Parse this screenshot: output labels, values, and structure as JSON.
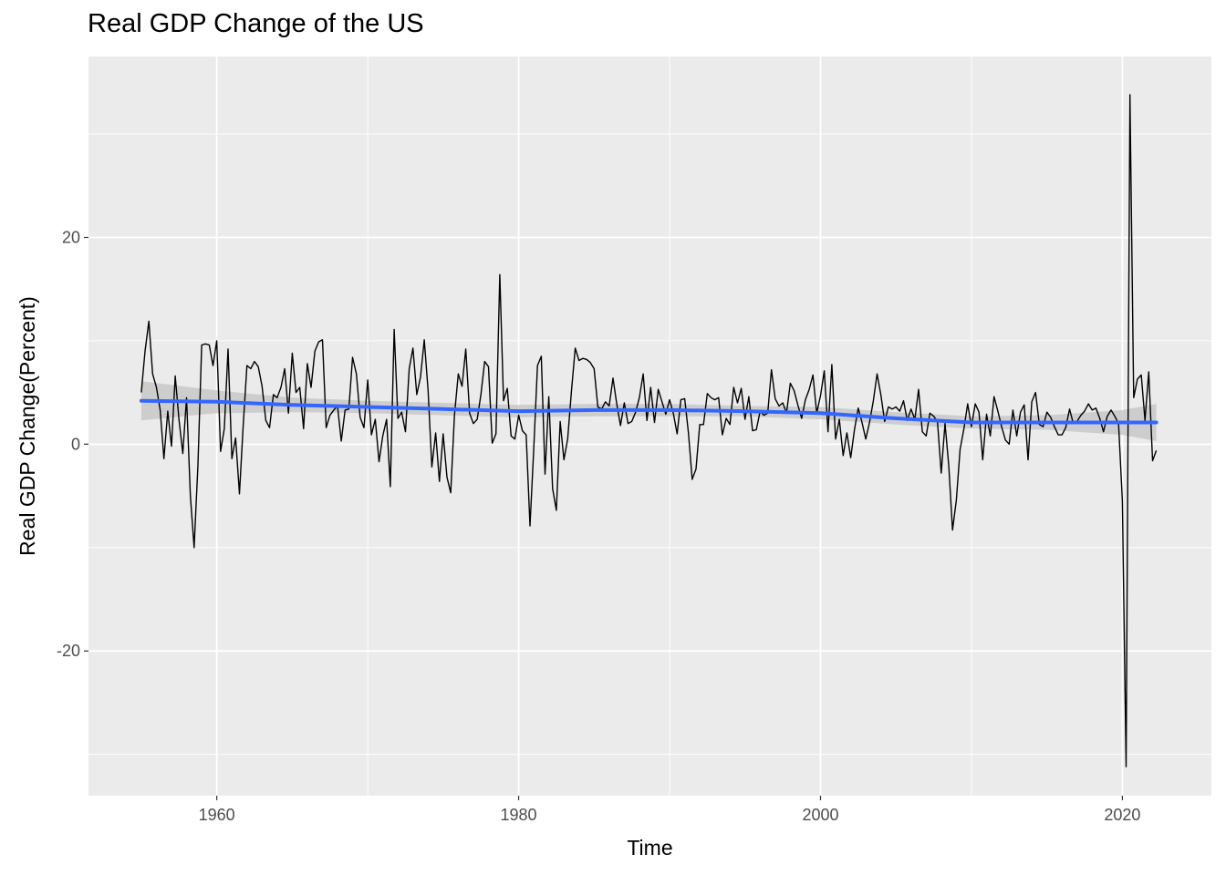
{
  "chart_data": {
    "type": "line",
    "title": "Real GDP Change of the US",
    "xlabel": "Time",
    "ylabel": "Real GDP Change(Percent)",
    "xlim": [
      1951.5,
      2025.9
    ],
    "ylim": [
      -34,
      37.5
    ],
    "x_ticks": [
      1960,
      1980,
      2000,
      2020
    ],
    "y_ticks": [
      -20,
      0,
      20
    ],
    "grid": true,
    "legend": "none",
    "colors": {
      "panel": "#ebebeb",
      "grid": "#ffffff",
      "series": "#000000",
      "trend": "#3366ff",
      "band": "#c8c8c8"
    },
    "series": [
      {
        "type": "line",
        "x": [
          1955.0,
          1955.25,
          1955.5,
          1955.75,
          1956.0,
          1956.25,
          1956.5,
          1956.75,
          1957.0,
          1957.25,
          1957.5,
          1957.75,
          1958.0,
          1958.25,
          1958.5,
          1958.75,
          1959.0,
          1959.25,
          1959.5,
          1959.75,
          1960.0,
          1960.25,
          1960.5,
          1960.75,
          1961.0,
          1961.25,
          1961.5,
          1961.75,
          1962.0,
          1962.25,
          1962.5,
          1962.75,
          1963.0,
          1963.25,
          1963.5,
          1963.75,
          1964.0,
          1964.25,
          1964.5,
          1964.75,
          1965.0,
          1965.25,
          1965.5,
          1965.75,
          1966.0,
          1966.25,
          1966.5,
          1966.75,
          1967.0,
          1967.25,
          1967.5,
          1967.75,
          1968.0,
          1968.25,
          1968.5,
          1968.75,
          1969.0,
          1969.25,
          1969.5,
          1969.75,
          1970.0,
          1970.25,
          1970.5,
          1970.75,
          1971.0,
          1971.25,
          1971.5,
          1971.75,
          1972.0,
          1972.25,
          1972.5,
          1972.75,
          1973.0,
          1973.25,
          1973.5,
          1973.75,
          1974.0,
          1974.25,
          1974.5,
          1974.75,
          1975.0,
          1975.25,
          1975.5,
          1975.75,
          1976.0,
          1976.25,
          1976.5,
          1976.75,
          1977.0,
          1977.25,
          1977.5,
          1977.75,
          1978.0,
          1978.25,
          1978.5,
          1978.75,
          1979.0,
          1979.25,
          1979.5,
          1979.75,
          1980.0,
          1980.25,
          1980.5,
          1980.75,
          1981.0,
          1981.25,
          1981.5,
          1981.75,
          1982.0,
          1982.25,
          1982.5,
          1982.75,
          1983.0,
          1983.25,
          1983.5,
          1983.75,
          1984.0,
          1984.25,
          1984.5,
          1984.75,
          1985.0,
          1985.25,
          1985.5,
          1985.75,
          1986.0,
          1986.25,
          1986.5,
          1986.75,
          1987.0,
          1987.25,
          1987.5,
          1987.75,
          1988.0,
          1988.25,
          1988.5,
          1988.75,
          1989.0,
          1989.25,
          1989.5,
          1989.75,
          1990.0,
          1990.25,
          1990.5,
          1990.75,
          1991.0,
          1991.25,
          1991.5,
          1991.75,
          1992.0,
          1992.25,
          1992.5,
          1992.75,
          1993.0,
          1993.25,
          1993.5,
          1993.75,
          1994.0,
          1994.25,
          1994.5,
          1994.75,
          1995.0,
          1995.25,
          1995.5,
          1995.75,
          1996.0,
          1996.25,
          1996.5,
          1996.75,
          1997.0,
          1997.25,
          1997.5,
          1997.75,
          1998.0,
          1998.25,
          1998.5,
          1998.75,
          1999.0,
          1999.25,
          1999.5,
          1999.75,
          2000.0,
          2000.25,
          2000.5,
          2000.75,
          2001.0,
          2001.25,
          2001.5,
          2001.75,
          2002.0,
          2002.25,
          2002.5,
          2002.75,
          2003.0,
          2003.25,
          2003.5,
          2003.75,
          2004.0,
          2004.25,
          2004.5,
          2004.75,
          2005.0,
          2005.25,
          2005.5,
          2005.75,
          2006.0,
          2006.25,
          2006.5,
          2006.75,
          2007.0,
          2007.25,
          2007.5,
          2007.75,
          2008.0,
          2008.25,
          2008.5,
          2008.75,
          2009.0,
          2009.25,
          2009.5,
          2009.75,
          2010.0,
          2010.25,
          2010.5,
          2010.75,
          2011.0,
          2011.25,
          2011.5,
          2011.75,
          2012.0,
          2012.25,
          2012.5,
          2012.75,
          2013.0,
          2013.25,
          2013.5,
          2013.75,
          2014.0,
          2014.25,
          2014.5,
          2014.75,
          2015.0,
          2015.25,
          2015.5,
          2015.75,
          2016.0,
          2016.25,
          2016.5,
          2016.75,
          2017.0,
          2017.25,
          2017.5,
          2017.75,
          2018.0,
          2018.25,
          2018.5,
          2018.75,
          2019.0,
          2019.25,
          2019.5,
          2019.75,
          2020.0,
          2020.25,
          2020.5,
          2020.75,
          2021.0,
          2021.25,
          2021.5,
          2021.75,
          2022.0,
          2022.25
        ],
        "y": [
          5.0,
          9.0,
          11.9,
          6.8,
          5.5,
          3.3,
          -1.4,
          3.2,
          -0.2,
          6.6,
          2.3,
          -0.9,
          4.5,
          -5.0,
          -10.0,
          -2.0,
          9.6,
          9.7,
          9.6,
          7.6,
          10.0,
          -0.7,
          1.5,
          9.2,
          -1.4,
          0.6,
          -4.8,
          1.8,
          7.6,
          7.3,
          8.0,
          7.5,
          5.6,
          2.3,
          1.6,
          4.8,
          4.5,
          5.5,
          7.3,
          3.0,
          8.8,
          5.0,
          5.5,
          1.5,
          7.8,
          5.5,
          9.0,
          9.9,
          10.1,
          1.6,
          2.8,
          3.3,
          3.7,
          0.3,
          3.3,
          3.4,
          8.4,
          6.8,
          2.6,
          1.6,
          6.2,
          0.9,
          2.4,
          -1.7,
          0.8,
          2.4,
          -4.1,
          11.1,
          2.5,
          3.1,
          1.2,
          7.3,
          9.3,
          4.8,
          6.5,
          10.1,
          5.2,
          -2.2,
          1.1,
          -3.6,
          1.0,
          -3.2,
          -4.7,
          2.8,
          6.8,
          5.6,
          9.2,
          3.0,
          2.0,
          2.4,
          4.8,
          8.0,
          7.5,
          0.1,
          1.0,
          16.4,
          4.2,
          5.4,
          0.8,
          0.5,
          2.8,
          1.3,
          0.9,
          -7.9,
          -0.5,
          7.6,
          8.5,
          -2.9,
          4.6,
          -4.3,
          -6.4,
          2.2,
          -1.5,
          0.5,
          5.2,
          9.3,
          8.1,
          8.3,
          8.2,
          7.9,
          7.3,
          3.6,
          3.4,
          4.1,
          3.7,
          6.4,
          3.9,
          1.8,
          4.0,
          2.0,
          2.2,
          3.1,
          4.5,
          6.8,
          2.3,
          5.5,
          2.1,
          5.3,
          4.1,
          2.9,
          4.3,
          3.0,
          1.0,
          4.3,
          4.4,
          1.1,
          -3.4,
          -2.4,
          1.9,
          1.9,
          4.9,
          4.5,
          4.3,
          4.5,
          0.9,
          2.5,
          1.9,
          5.5,
          4.0,
          5.4,
          2.4,
          4.6,
          1.3,
          1.4,
          3.2,
          2.8,
          3.0,
          7.2,
          4.4,
          3.7,
          4.0,
          3.0,
          5.9,
          5.2,
          3.8,
          2.5,
          4.3,
          5.3,
          6.7,
          3.0,
          4.7,
          7.1,
          1.2,
          7.7,
          0.5,
          2.4,
          -1.1,
          1.1,
          -1.3,
          1.4,
          3.5,
          2.1,
          0.5,
          2.1,
          4.2,
          6.8,
          4.8,
          2.2,
          3.6,
          3.4,
          3.6,
          3.2,
          4.2,
          2.3,
          3.4,
          2.4,
          5.3,
          1.2,
          0.8,
          3.0,
          2.7,
          2.2,
          -2.8,
          2.0,
          -2.1,
          -8.3,
          -5.4,
          -0.5,
          1.5,
          3.9,
          1.7,
          3.9,
          3.1,
          -1.5,
          2.9,
          0.8,
          4.6,
          3.2,
          1.7,
          0.4,
          0.0,
          3.3,
          0.8,
          3.1,
          3.8,
          -1.5,
          4.1,
          5.0,
          1.9,
          1.7,
          3.1,
          2.6,
          1.7,
          0.9,
          0.9,
          1.6,
          3.4,
          2.0,
          2.2,
          2.8,
          3.2,
          3.9,
          3.3,
          3.5,
          2.5,
          1.2,
          2.7,
          3.3,
          2.7,
          2.0,
          -5.5,
          -31.2,
          33.8,
          4.5,
          6.3,
          6.7,
          2.3,
          7.0,
          -1.6,
          -0.6
        ]
      },
      {
        "type": "smooth",
        "x": [
          1955.0,
          1960.0,
          1965.0,
          1970.0,
          1975.0,
          1980.0,
          1985.0,
          1990.0,
          1995.0,
          2000.0,
          2005.0,
          2010.0,
          2015.0,
          2020.0,
          2022.25
        ],
        "y": [
          4.2,
          4.1,
          3.8,
          3.6,
          3.4,
          3.2,
          3.3,
          3.3,
          3.2,
          3.0,
          2.5,
          2.1,
          2.1,
          2.1,
          2.1
        ],
        "lower": [
          2.3,
          3.0,
          3.1,
          3.0,
          2.8,
          2.6,
          2.7,
          2.7,
          2.7,
          2.4,
          1.9,
          1.5,
          1.4,
          0.9,
          0.3
        ],
        "upper": [
          6.1,
          5.2,
          4.5,
          4.2,
          4.0,
          3.8,
          3.9,
          3.9,
          3.7,
          3.6,
          3.1,
          2.7,
          2.8,
          3.3,
          3.9
        ]
      }
    ]
  }
}
